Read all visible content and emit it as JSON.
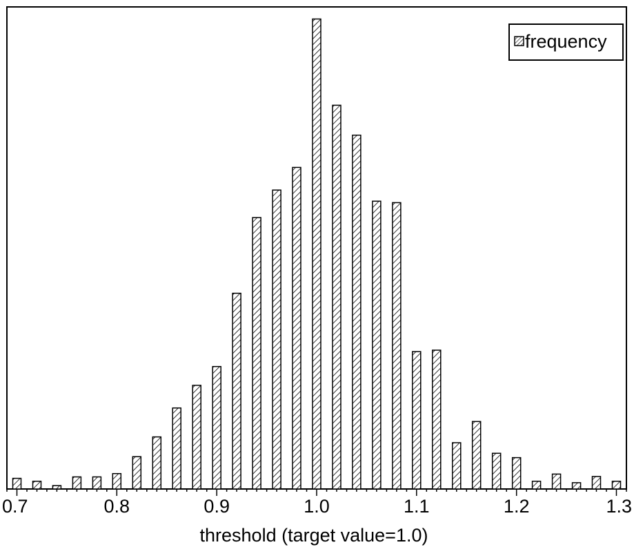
{
  "chart_data": {
    "type": "bar",
    "title": "",
    "xlabel": "threshold (target value=1.0)",
    "ylabel": "",
    "xlim": [
      0.69,
      1.31
    ],
    "ylim": [
      0,
      100
    ],
    "grid": false,
    "legend_position": "top-right",
    "x_ticks": [
      "0.7",
      "0.8",
      "0.9",
      "1.0",
      "1.1",
      "1.2",
      "1.3"
    ],
    "series": [
      {
        "name": "frequency",
        "pattern": "diagonal-hatch",
        "x": [
          0.7,
          0.72,
          0.74,
          0.76,
          0.78,
          0.8,
          0.82,
          0.84,
          0.86,
          0.88,
          0.9,
          0.92,
          0.94,
          0.96,
          0.98,
          1.0,
          1.02,
          1.04,
          1.06,
          1.08,
          1.1,
          1.12,
          1.14,
          1.16,
          1.18,
          1.2,
          1.22,
          1.24,
          1.26,
          1.28,
          1.3
        ],
        "values": [
          2.2,
          1.6,
          0.7,
          2.5,
          2.5,
          3.2,
          6.7,
          10.8,
          16.8,
          21.5,
          25.4,
          40.6,
          56.3,
          62.0,
          66.7,
          97.5,
          79.6,
          73.4,
          59.7,
          59.4,
          28.5,
          28.8,
          9.6,
          14.0,
          7.4,
          6.5,
          1.6,
          3.1,
          1.3,
          2.6,
          1.6
        ]
      }
    ]
  },
  "colors": {
    "bar_stroke": "#000000",
    "hatch": "#000000",
    "background": "#ffffff"
  }
}
